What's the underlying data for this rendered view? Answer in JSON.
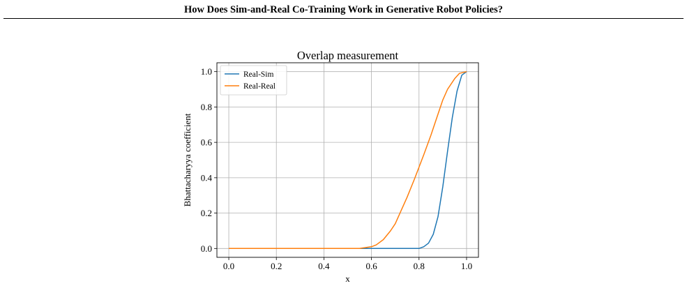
{
  "header": {
    "title": "How Does Sim-and-Real Co-Training Work in Generative Robot Policies?"
  },
  "chart_data": {
    "type": "line",
    "title": "Overlap measurement",
    "xlabel": "x",
    "ylabel": "Bhattacharyya coefficient",
    "xlim": [
      -0.05,
      1.05
    ],
    "ylim": [
      -0.05,
      1.05
    ],
    "xticks": [
      "0.0",
      "0.2",
      "0.4",
      "0.6",
      "0.8",
      "1.0"
    ],
    "yticks": [
      "0.0",
      "0.2",
      "0.4",
      "0.6",
      "0.8",
      "1.0"
    ],
    "grid": true,
    "legend_position": "top-left",
    "series": [
      {
        "name": "Real-Sim",
        "color": "#1f77b4",
        "x": [
          0.0,
          0.1,
          0.2,
          0.3,
          0.4,
          0.5,
          0.6,
          0.7,
          0.75,
          0.8,
          0.82,
          0.84,
          0.86,
          0.88,
          0.9,
          0.92,
          0.94,
          0.96,
          0.98,
          1.0
        ],
        "y": [
          0.0,
          0.0,
          0.0,
          0.0,
          0.0,
          0.0,
          0.0,
          0.0,
          0.0,
          0.0,
          0.01,
          0.03,
          0.08,
          0.18,
          0.35,
          0.55,
          0.74,
          0.89,
          0.98,
          1.0
        ]
      },
      {
        "name": "Real-Real",
        "color": "#ff7f0e",
        "x": [
          0.0,
          0.1,
          0.2,
          0.3,
          0.4,
          0.5,
          0.55,
          0.6,
          0.62,
          0.65,
          0.68,
          0.7,
          0.72,
          0.75,
          0.78,
          0.8,
          0.82,
          0.85,
          0.88,
          0.9,
          0.92,
          0.95,
          0.97,
          1.0
        ],
        "y": [
          0.0,
          0.0,
          0.0,
          0.0,
          0.0,
          0.0,
          0.0,
          0.01,
          0.02,
          0.05,
          0.1,
          0.14,
          0.2,
          0.29,
          0.39,
          0.46,
          0.53,
          0.64,
          0.76,
          0.84,
          0.9,
          0.96,
          0.99,
          1.0
        ]
      }
    ]
  }
}
